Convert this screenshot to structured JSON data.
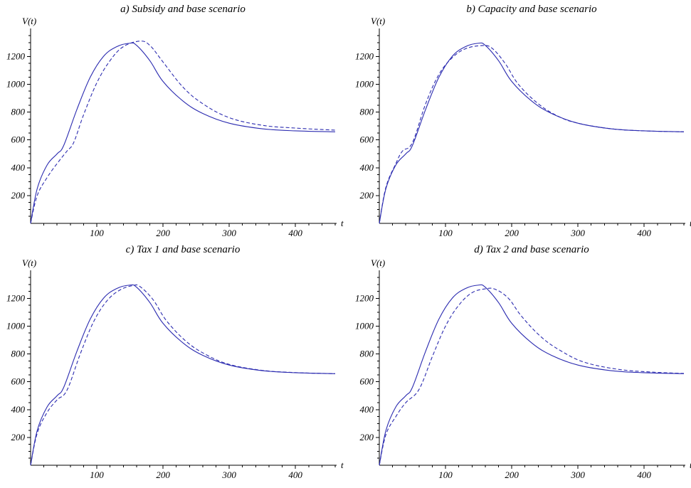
{
  "chart_data": [
    {
      "type": "line",
      "title": "a) Subsidy and base scenario",
      "ylabel": "V(t)",
      "xlabel": "t",
      "xlim": [
        0,
        460
      ],
      "ylim": [
        0,
        1350
      ],
      "xticks": [
        100,
        200,
        300,
        400
      ],
      "yticks": [
        200,
        400,
        600,
        800,
        1000,
        1200
      ],
      "grid": false,
      "series": [
        {
          "style": "solid",
          "color": "#2b2bb0",
          "x": [
            0,
            10,
            25,
            40,
            50,
            70,
            90,
            110,
            130,
            150,
            160,
            180,
            200,
            230,
            260,
            300,
            350,
            400,
            460
          ],
          "y": [
            0,
            250,
            420,
            500,
            560,
            820,
            1050,
            1200,
            1270,
            1295,
            1280,
            1170,
            1020,
            880,
            790,
            720,
            680,
            665,
            658
          ]
        },
        {
          "style": "dashed",
          "color": "#2b2bb0",
          "x": [
            0,
            10,
            25,
            40,
            55,
            65,
            80,
            100,
            120,
            140,
            165,
            180,
            200,
            230,
            260,
            300,
            350,
            400,
            460
          ],
          "y": [
            0,
            200,
            330,
            430,
            520,
            580,
            780,
            1010,
            1170,
            1270,
            1310,
            1280,
            1160,
            980,
            860,
            760,
            705,
            685,
            670
          ]
        }
      ]
    },
    {
      "type": "line",
      "title": "b) Capacity and base scenario",
      "ylabel": "V(t)",
      "xlabel": "t",
      "xlim": [
        0,
        460
      ],
      "ylim": [
        0,
        1350
      ],
      "xticks": [
        100,
        200,
        300,
        400
      ],
      "yticks": [
        200,
        400,
        600,
        800,
        1000,
        1200
      ],
      "grid": false,
      "series": [
        {
          "style": "solid",
          "color": "#2b2bb0",
          "x": [
            0,
            10,
            25,
            40,
            50,
            70,
            90,
            110,
            130,
            150,
            160,
            180,
            200,
            230,
            260,
            300,
            350,
            400,
            460
          ],
          "y": [
            0,
            250,
            420,
            500,
            560,
            820,
            1050,
            1200,
            1270,
            1295,
            1280,
            1170,
            1020,
            880,
            790,
            720,
            680,
            665,
            658
          ]
        },
        {
          "style": "dashed",
          "color": "#2b2bb0",
          "x": [
            0,
            10,
            25,
            35,
            50,
            70,
            90,
            110,
            130,
            155,
            170,
            190,
            210,
            240,
            270,
            300,
            350,
            400,
            460
          ],
          "y": [
            0,
            260,
            430,
            520,
            580,
            860,
            1070,
            1190,
            1255,
            1278,
            1260,
            1150,
            1000,
            860,
            770,
            720,
            680,
            665,
            658
          ]
        }
      ]
    },
    {
      "type": "line",
      "title": "c) Tax 1 and base scenario",
      "ylabel": "V(t)",
      "xlabel": "t",
      "xlim": [
        0,
        460
      ],
      "ylim": [
        0,
        1350
      ],
      "xticks": [
        100,
        200,
        300,
        400
      ],
      "yticks": [
        200,
        400,
        600,
        800,
        1000,
        1200
      ],
      "grid": false,
      "series": [
        {
          "style": "solid",
          "color": "#2b2bb0",
          "x": [
            0,
            10,
            25,
            40,
            50,
            70,
            90,
            110,
            130,
            150,
            160,
            180,
            200,
            230,
            260,
            300,
            350,
            400,
            460
          ],
          "y": [
            0,
            250,
            420,
            500,
            560,
            820,
            1050,
            1200,
            1270,
            1295,
            1280,
            1170,
            1020,
            880,
            790,
            720,
            680,
            665,
            658
          ]
        },
        {
          "style": "dashed",
          "color": "#2b2bb0",
          "x": [
            0,
            10,
            25,
            40,
            55,
            75,
            95,
            115,
            135,
            155,
            165,
            185,
            205,
            235,
            265,
            300,
            350,
            400,
            460
          ],
          "y": [
            0,
            230,
            380,
            470,
            540,
            800,
            1030,
            1180,
            1260,
            1292,
            1285,
            1190,
            1040,
            890,
            795,
            725,
            682,
            666,
            658
          ]
        }
      ]
    },
    {
      "type": "line",
      "title": "d) Tax 2 and base scenario",
      "ylabel": "V(t)",
      "xlabel": "t",
      "xlim": [
        0,
        460
      ],
      "ylim": [
        0,
        1350
      ],
      "xticks": [
        100,
        200,
        300,
        400
      ],
      "yticks": [
        200,
        400,
        600,
        800,
        1000,
        1200
      ],
      "grid": false,
      "series": [
        {
          "style": "solid",
          "color": "#2b2bb0",
          "x": [
            0,
            10,
            25,
            40,
            50,
            70,
            90,
            110,
            130,
            150,
            160,
            180,
            200,
            230,
            260,
            300,
            350,
            400,
            460
          ],
          "y": [
            0,
            250,
            420,
            500,
            560,
            820,
            1050,
            1200,
            1270,
            1295,
            1280,
            1170,
            1020,
            880,
            790,
            720,
            680,
            665,
            658
          ]
        },
        {
          "style": "dashed",
          "color": "#2b2bb0",
          "x": [
            0,
            10,
            25,
            40,
            60,
            80,
            100,
            120,
            140,
            160,
            175,
            195,
            215,
            245,
            275,
            310,
            360,
            410,
            460
          ],
          "y": [
            0,
            220,
            350,
            450,
            545,
            780,
            1000,
            1150,
            1240,
            1268,
            1265,
            1200,
            1070,
            920,
            820,
            740,
            690,
            670,
            660
          ]
        }
      ]
    }
  ]
}
